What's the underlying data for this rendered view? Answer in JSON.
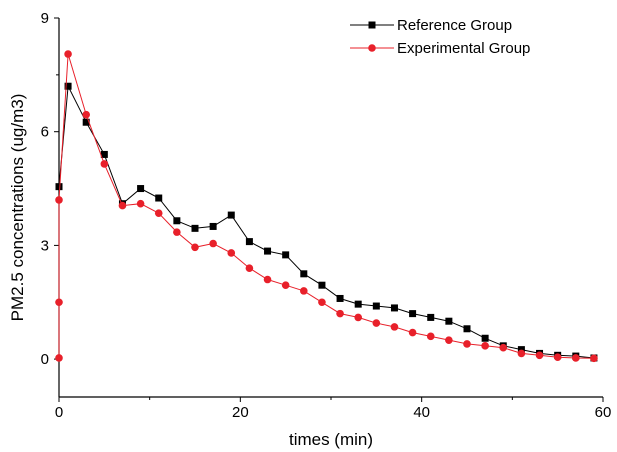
{
  "chart_data": {
    "type": "line",
    "xlabel": "times (min)",
    "ylabel": "PM2.5 concentrations (ug/m3)",
    "xlim": [
      0,
      60
    ],
    "ylim": [
      -1,
      9
    ],
    "xticks": [
      0,
      20,
      40,
      60
    ],
    "yticks": [
      0,
      3,
      6,
      9
    ],
    "grid": false,
    "legend_position": "top-right",
    "series": [
      {
        "name": "Reference Group",
        "color": "#000000",
        "marker": "square",
        "x": [
          0,
          1,
          3,
          5,
          7,
          9,
          11,
          13,
          15,
          17,
          19,
          21,
          23,
          25,
          27,
          29,
          31,
          33,
          35,
          37,
          39,
          41,
          43,
          45,
          47,
          49,
          51,
          53,
          55,
          57,
          59
        ],
        "y": [
          4.55,
          7.2,
          6.25,
          5.4,
          4.1,
          4.5,
          4.25,
          3.65,
          3.45,
          3.5,
          3.8,
          3.1,
          2.85,
          2.75,
          2.25,
          1.95,
          1.6,
          1.45,
          1.4,
          1.35,
          1.2,
          1.1,
          1.0,
          0.8,
          0.55,
          0.35,
          0.25,
          0.15,
          0.1,
          0.08,
          0.03
        ]
      },
      {
        "name": "Experimental Group",
        "color": "#e8202a",
        "marker": "circle",
        "x": [
          0,
          0,
          0,
          1,
          3,
          5,
          7,
          9,
          11,
          13,
          15,
          17,
          19,
          21,
          23,
          25,
          27,
          29,
          31,
          33,
          35,
          37,
          39,
          41,
          43,
          45,
          47,
          49,
          51,
          53,
          55,
          57,
          59
        ],
        "y": [
          0.03,
          1.5,
          4.2,
          8.05,
          6.45,
          5.15,
          4.05,
          4.1,
          3.85,
          3.35,
          2.95,
          3.05,
          2.8,
          2.4,
          2.1,
          1.95,
          1.8,
          1.5,
          1.2,
          1.1,
          0.95,
          0.85,
          0.7,
          0.6,
          0.5,
          0.4,
          0.35,
          0.3,
          0.15,
          0.1,
          0.05,
          0.03,
          0.02
        ]
      }
    ]
  }
}
